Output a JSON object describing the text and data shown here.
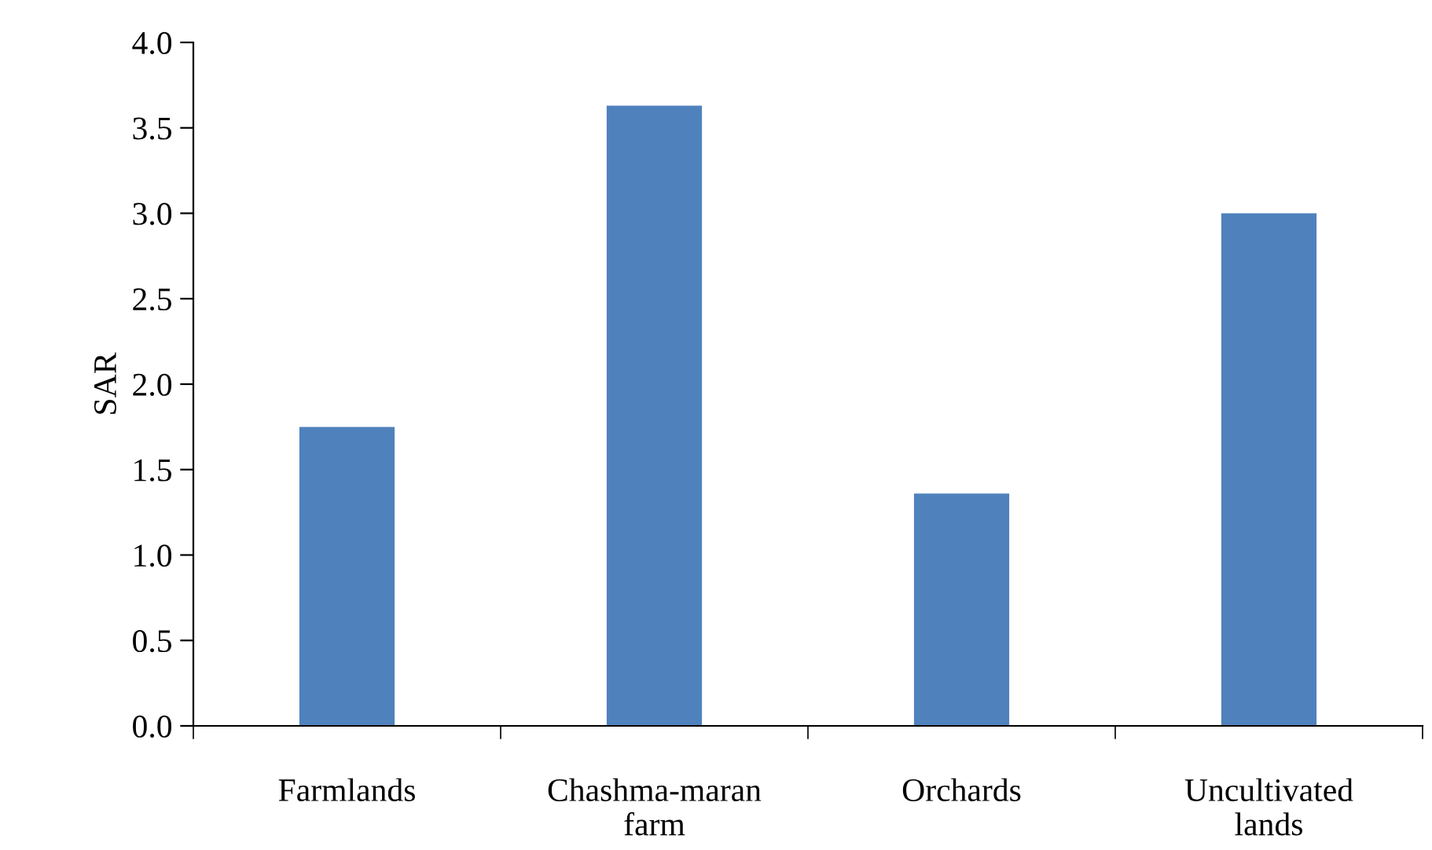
{
  "chart_data": {
    "type": "bar",
    "ylabel": "SAR",
    "categories": [
      "Farmlands",
      "Chashma-maran\nfarm",
      "Orchards",
      "Uncultivated\nlands"
    ],
    "values": [
      1.75,
      3.63,
      1.36,
      3.0
    ],
    "color": "#4f81bd",
    "ylim": [
      0,
      4.0
    ],
    "yticks": [
      {
        "value": 0,
        "label": "0.0"
      },
      {
        "value": 0.5,
        "label": "0.5"
      },
      {
        "value": 1.0,
        "label": "1.0"
      },
      {
        "value": 1.5,
        "label": "1.5"
      },
      {
        "value": 2.0,
        "label": "2.0"
      },
      {
        "value": 2.5,
        "label": "2.5"
      },
      {
        "value": 3.0,
        "label": "3.0"
      },
      {
        "value": 3.5,
        "label": "3.5"
      },
      {
        "value": 4.0,
        "label": "4.0"
      }
    ],
    "grid": false,
    "legend": false
  }
}
